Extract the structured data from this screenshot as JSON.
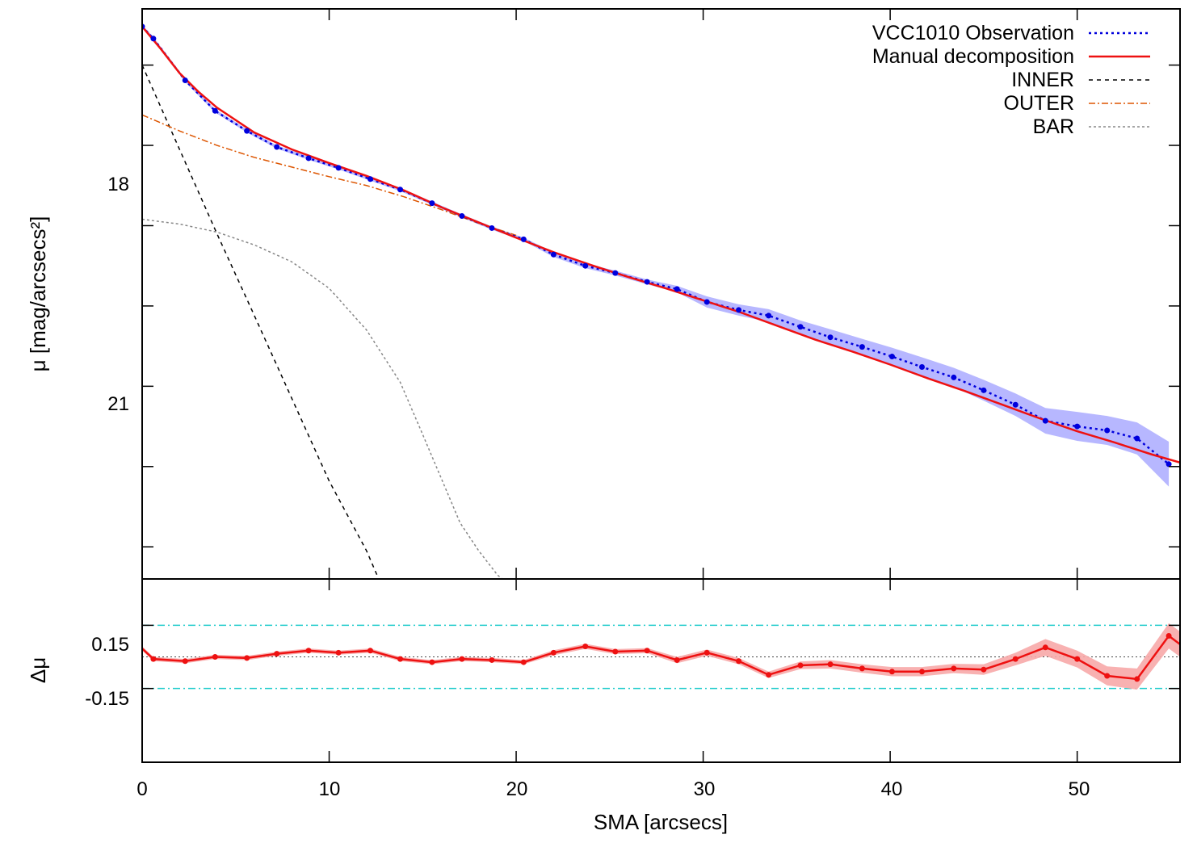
{
  "chart_data": [
    {
      "type": "line",
      "panel": "profile",
      "ylabel": "μ [mag/arcsecs²]",
      "ylim": [
        16.3,
        23.4
      ],
      "y_inverted": true,
      "xlim": [
        0,
        55.5
      ],
      "ytick_labels": [
        "18",
        "21"
      ],
      "legend_position": "top-right",
      "series": [
        {
          "name": "VCC1010 Observation",
          "style": "dotted-with-points",
          "color": "#0000dd",
          "band_color": "#aaaaff",
          "x": [
            0,
            0.6,
            2.3,
            3.9,
            5.6,
            7.2,
            8.9,
            10.5,
            12.2,
            13.8,
            15.5,
            17.1,
            18.7,
            20.4,
            22.0,
            23.7,
            25.3,
            27.0,
            28.6,
            30.2,
            31.9,
            33.5,
            35.2,
            36.8,
            38.5,
            40.1,
            41.7,
            43.4,
            45.0,
            46.7,
            48.3,
            50.0,
            51.6,
            53.2,
            54.9
          ],
          "values": [
            16.52,
            16.67,
            17.19,
            17.57,
            17.82,
            18.02,
            18.16,
            18.28,
            18.42,
            18.55,
            18.72,
            18.88,
            19.03,
            19.17,
            19.36,
            19.5,
            19.59,
            19.7,
            19.79,
            19.95,
            20.05,
            20.12,
            20.26,
            20.39,
            20.51,
            20.63,
            20.76,
            20.89,
            21.05,
            21.23,
            21.43,
            21.5,
            21.55,
            21.65,
            21.97
          ],
          "band_halfwidth": [
            0.02,
            0.02,
            0.02,
            0.02,
            0.02,
            0.02,
            0.02,
            0.02,
            0.02,
            0.02,
            0.02,
            0.02,
            0.02,
            0.02,
            0.03,
            0.03,
            0.03,
            0.03,
            0.04,
            0.07,
            0.07,
            0.08,
            0.08,
            0.1,
            0.1,
            0.11,
            0.12,
            0.12,
            0.13,
            0.14,
            0.16,
            0.18,
            0.18,
            0.2,
            0.28
          ]
        },
        {
          "name": "Manual decomposition",
          "style": "solid",
          "color": "#ee1111",
          "x": [
            0,
            1,
            2,
            3,
            4,
            6,
            8,
            10,
            12,
            14,
            16,
            18,
            20,
            22,
            24,
            26,
            28,
            30,
            32,
            34,
            36,
            38,
            40,
            42,
            44,
            46,
            48,
            50,
            52,
            54,
            55.5
          ],
          "values": [
            16.52,
            16.8,
            17.1,
            17.33,
            17.53,
            17.84,
            18.05,
            18.22,
            18.38,
            18.56,
            18.77,
            18.96,
            19.15,
            19.33,
            19.49,
            19.64,
            19.78,
            19.93,
            20.08,
            20.25,
            20.42,
            20.57,
            20.73,
            20.9,
            21.06,
            21.23,
            21.4,
            21.56,
            21.7,
            21.85,
            21.95
          ]
        },
        {
          "name": "INNER",
          "style": "dashed",
          "color": "#000000",
          "x": [
            0,
            2,
            4,
            6,
            8,
            10,
            12,
            12.65
          ],
          "values": [
            17.0,
            18.05,
            19.1,
            20.12,
            21.15,
            22.18,
            23.05,
            23.4
          ]
        },
        {
          "name": "OUTER",
          "style": "dash-dot",
          "color": "#dd5500",
          "x": [
            0,
            2,
            4,
            6,
            8,
            10,
            12,
            14,
            16,
            18,
            20
          ],
          "values": [
            17.62,
            17.82,
            18.0,
            18.15,
            18.27,
            18.39,
            18.5,
            18.64,
            18.8,
            18.97,
            19.12
          ]
        },
        {
          "name": "BAR",
          "style": "dotted",
          "color": "#888888",
          "x": [
            0,
            2,
            4,
            6,
            8,
            10,
            12,
            13.8,
            15,
            16,
            17,
            18,
            19,
            19.5
          ],
          "values": [
            18.92,
            18.98,
            19.08,
            19.24,
            19.45,
            19.78,
            20.3,
            20.95,
            21.6,
            22.15,
            22.7,
            23.05,
            23.35,
            23.45
          ]
        }
      ]
    },
    {
      "type": "line",
      "panel": "residual",
      "ylabel": "Δμ",
      "xlabel": "SMA [arcsecs]",
      "ylim": [
        -0.5,
        0.37
      ],
      "xlim": [
        0,
        55.5
      ],
      "xtick_labels": [
        "0",
        "10",
        "20",
        "30",
        "40",
        "50"
      ],
      "ytick_labels": [
        "0.15",
        "-0.15"
      ],
      "reference_lines": [
        0.15,
        -0.15
      ],
      "reference_color": "#22cccc",
      "zero_line": 0,
      "series": [
        {
          "style": "solid-with-points",
          "color": "#ee1111",
          "band_color": "#f7a8a8",
          "x": [
            0,
            0.6,
            2.3,
            3.9,
            5.6,
            7.2,
            8.9,
            10.5,
            12.2,
            13.8,
            15.5,
            17.1,
            18.7,
            20.4,
            22.0,
            23.7,
            25.3,
            27.0,
            28.6,
            30.2,
            31.9,
            33.5,
            35.2,
            36.8,
            38.5,
            40.1,
            41.7,
            43.4,
            45.0,
            46.7,
            48.3,
            50.0,
            51.6,
            53.2,
            54.9,
            55.5
          ],
          "values": [
            0.04,
            -0.01,
            -0.02,
            0.0,
            -0.005,
            0.015,
            0.03,
            0.02,
            0.03,
            -0.01,
            -0.025,
            -0.01,
            -0.015,
            -0.025,
            0.02,
            0.05,
            0.025,
            0.03,
            -0.015,
            0.02,
            -0.02,
            -0.085,
            -0.04,
            -0.035,
            -0.055,
            -0.07,
            -0.07,
            -0.055,
            -0.06,
            -0.01,
            0.045,
            -0.01,
            -0.09,
            -0.105,
            0.1,
            0.06
          ],
          "band_halfwidth": [
            0.01,
            0.01,
            0.01,
            0.01,
            0.01,
            0.01,
            0.01,
            0.01,
            0.01,
            0.01,
            0.01,
            0.01,
            0.01,
            0.01,
            0.012,
            0.012,
            0.012,
            0.012,
            0.015,
            0.015,
            0.015,
            0.015,
            0.018,
            0.02,
            0.02,
            0.022,
            0.022,
            0.022,
            0.025,
            0.03,
            0.04,
            0.04,
            0.045,
            0.05,
            0.06,
            0.06
          ]
        }
      ]
    }
  ]
}
